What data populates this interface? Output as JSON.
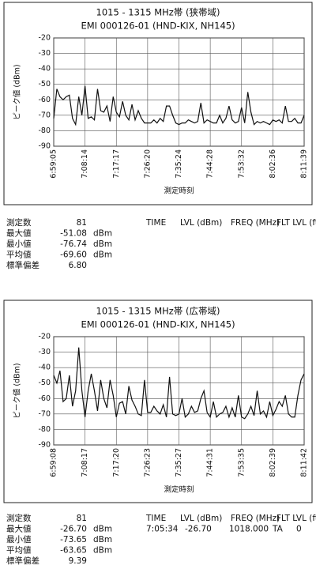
{
  "chart_data": [
    {
      "type": "line",
      "title": "1015 - 1315 MHz帯 (狭帯域)",
      "subtitle": "EMI 000126-01 (HND-KIX, NH145)",
      "x_label": "測定時刻",
      "y_label": "ピーク値 (dBm)",
      "categories": [
        "6:59:05",
        null,
        null,
        null,
        null,
        null,
        null,
        null,
        null,
        null,
        "7:08:14",
        null,
        null,
        null,
        null,
        null,
        null,
        null,
        null,
        null,
        "7:17:17",
        null,
        null,
        null,
        null,
        null,
        null,
        null,
        null,
        null,
        "7:26:20",
        null,
        null,
        null,
        null,
        null,
        null,
        null,
        null,
        null,
        "7:35:24",
        null,
        null,
        null,
        null,
        null,
        null,
        null,
        null,
        null,
        "7:44:28",
        null,
        null,
        null,
        null,
        null,
        null,
        null,
        null,
        null,
        "7:53:32",
        null,
        null,
        null,
        null,
        null,
        null,
        null,
        null,
        null,
        "8:02:36",
        null,
        null,
        null,
        null,
        null,
        null,
        null,
        null,
        null,
        "8:11:39"
      ],
      "values": [
        -72,
        -53,
        -58,
        -60,
        -58,
        -57,
        -72,
        -76,
        -58,
        -70,
        -51,
        -72,
        -71,
        -73,
        -53,
        -67,
        -68,
        -64,
        -74,
        -58,
        -68,
        -71,
        -61,
        -70,
        -73,
        -63,
        -73,
        -67,
        -72,
        -75,
        -75,
        -75,
        -73,
        -75,
        -72,
        -74,
        -64,
        -64,
        -70,
        -75,
        -76,
        -75,
        -75,
        -73,
        -74,
        -75,
        -74,
        -62,
        -75,
        -73,
        -74,
        -75,
        -75,
        -70,
        -75,
        -72,
        -64,
        -73,
        -75,
        -74,
        -65,
        -75,
        -55,
        -68,
        -76,
        -74,
        -75,
        -74,
        -75,
        -76,
        -73,
        -74,
        -73,
        -75,
        -64,
        -74,
        -74,
        -72,
        -75,
        -75,
        -70
      ],
      "color": "#111111",
      "ylim": [
        -90,
        -20
      ],
      "yticks": [
        -20,
        -30,
        -40,
        -50,
        -60,
        -70,
        -80,
        -90
      ],
      "grid": true
    },
    {
      "type": "line",
      "title": "1015 - 1315 MHz帯 (広帯域)",
      "subtitle": "EMI 000126-01 (HND-KIX, NH145)",
      "x_label": "測定時刻",
      "y_label": "ピーク値 (dBm)",
      "categories": [
        "6:59:08",
        null,
        null,
        null,
        null,
        null,
        null,
        null,
        null,
        null,
        "7:08:17",
        null,
        null,
        null,
        null,
        null,
        null,
        null,
        null,
        null,
        "7:17:20",
        null,
        null,
        null,
        null,
        null,
        null,
        null,
        null,
        null,
        "7:26:23",
        null,
        null,
        null,
        null,
        null,
        null,
        null,
        null,
        null,
        "7:35:27",
        null,
        null,
        null,
        null,
        null,
        null,
        null,
        null,
        null,
        "7:44:31",
        null,
        null,
        null,
        null,
        null,
        null,
        null,
        null,
        null,
        "7:53:35",
        null,
        null,
        null,
        null,
        null,
        null,
        null,
        null,
        null,
        "8:02:39",
        null,
        null,
        null,
        null,
        null,
        null,
        null,
        null,
        null,
        "8:11:42"
      ],
      "values": [
        -45,
        -50,
        -42,
        -62,
        -60,
        -45,
        -65,
        -55,
        -27,
        -55,
        -72,
        -55,
        -44,
        -55,
        -68,
        -48,
        -60,
        -66,
        -48,
        -58,
        -72,
        -63,
        -62,
        -70,
        -52,
        -61,
        -65,
        -70,
        -71,
        -48,
        -69,
        -69,
        -65,
        -68,
        -70,
        -64,
        -72,
        -46,
        -70,
        -71,
        -70,
        -60,
        -72,
        -70,
        -65,
        -69,
        -68,
        -60,
        -55,
        -69,
        -72,
        -62,
        -72,
        -70,
        -69,
        -65,
        -72,
        -66,
        -72,
        -58,
        -72,
        -73,
        -70,
        -65,
        -71,
        -55,
        -70,
        -68,
        -72,
        -62,
        -71,
        -67,
        -62,
        -65,
        -58,
        -70,
        -72,
        -72,
        -58,
        -48,
        -44
      ],
      "color": "#111111",
      "ylim": [
        -90,
        -20
      ],
      "yticks": [
        -20,
        -30,
        -40,
        -50,
        -60,
        -70,
        -80,
        -90
      ],
      "grid": true
    }
  ],
  "summaries": [
    {
      "rows": [
        [
          "測定数",
          "81",
          ""
        ],
        [
          "最大値",
          "-51.08",
          "dBm"
        ],
        [
          "最小値",
          "-76.74",
          "dBm"
        ],
        [
          "平均値",
          "-69.60",
          "dBm"
        ],
        [
          "標準偏差",
          "6.80",
          ""
        ]
      ],
      "header": [
        "TIME",
        "LVL (dBm)",
        "FREQ (MHz)",
        "FLT LVL (ft)"
      ],
      "record": []
    },
    {
      "rows": [
        [
          "測定数",
          "81",
          ""
        ],
        [
          "最大値",
          "-26.70",
          "dBm"
        ],
        [
          "最小値",
          "-73.65",
          "dBm"
        ],
        [
          "平均値",
          "-63.65",
          "dBm"
        ],
        [
          "標準偏差",
          "9.39",
          ""
        ]
      ],
      "header": [
        "TIME",
        "LVL (dBm)",
        "FREQ (MHz)",
        "FLT LVL (ft)"
      ],
      "record": [
        "7:05:34",
        "-26.70",
        "1018.000",
        "TA",
        "0"
      ]
    }
  ]
}
